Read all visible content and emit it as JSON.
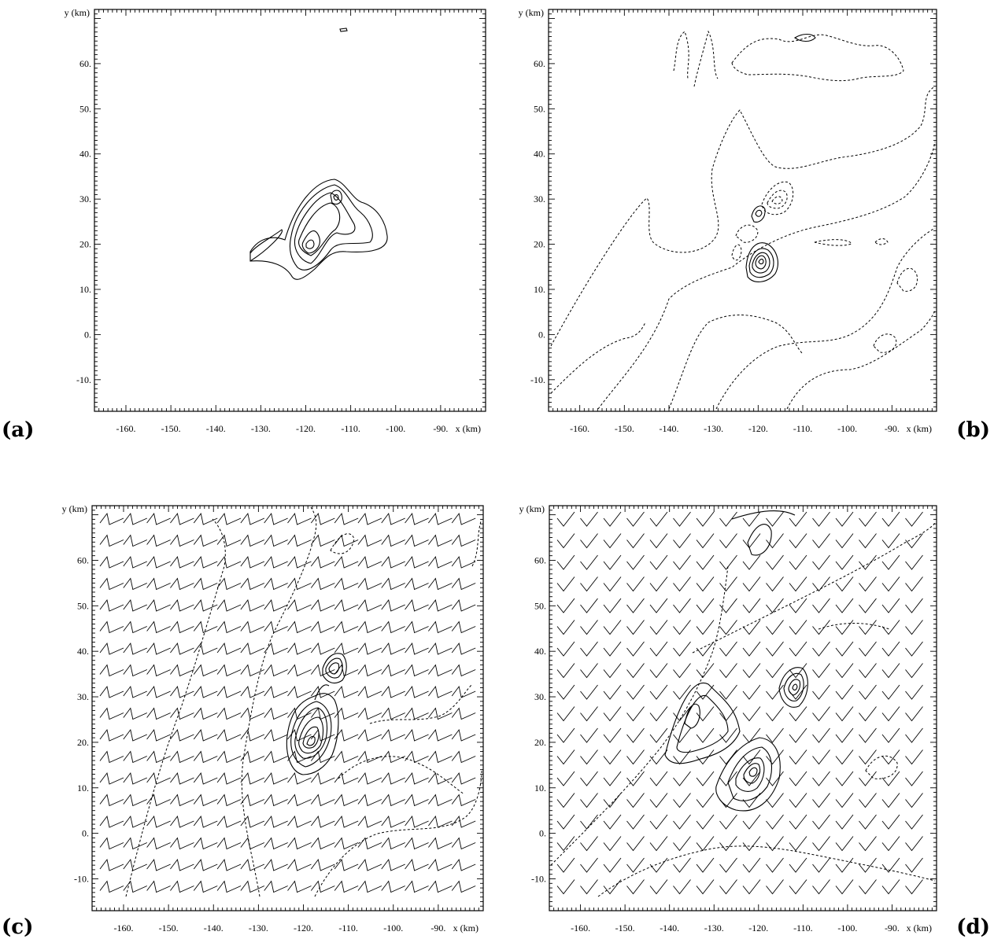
{
  "figure": {
    "panels": [
      {
        "id": "a",
        "label": "(a)",
        "xlabel": "x (km)",
        "ylabel": "y (km)",
        "xticks": [
          "-160.",
          "-150.",
          "-140.",
          "-130.",
          "-120.",
          "-110.",
          "-100.",
          "-90."
        ],
        "yticks": [
          "60.",
          "50.",
          "40.",
          "30.",
          "20.",
          "10.",
          "0.",
          "-10."
        ],
        "xlim": [
          -167,
          -80
        ],
        "ylim": [
          -17,
          72
        ],
        "wind_barbs": false
      },
      {
        "id": "b",
        "label": "(b)",
        "xlabel": "x (km)",
        "ylabel": "y (km)",
        "xticks": [
          "-160.",
          "-150.",
          "-140.",
          "-130.",
          "-120.",
          "-110.",
          "-100.",
          "-90."
        ],
        "yticks": [
          "60.",
          "50.",
          "40.",
          "30.",
          "20.",
          "10.",
          "0.",
          "-10."
        ],
        "xlim": [
          -167,
          -80
        ],
        "ylim": [
          -17,
          72
        ],
        "wind_barbs": false
      },
      {
        "id": "c",
        "label": "(c)",
        "xlabel": "x (km)",
        "ylabel": "y (km)",
        "xticks": [
          "-160.",
          "-150.",
          "-140.",
          "-130.",
          "-120.",
          "-110.",
          "-100.",
          "-90."
        ],
        "yticks": [
          "60.",
          "50.",
          "40.",
          "30.",
          "20.",
          "10.",
          "0.",
          "-10."
        ],
        "xlim": [
          -167,
          -80
        ],
        "ylim": [
          -17,
          72
        ],
        "wind_barbs": true,
        "barb_style": "zigzag"
      },
      {
        "id": "d",
        "label": "(d)",
        "xlabel": "x (km)",
        "ylabel": "y (km)",
        "xticks": [
          "-160.",
          "-150.",
          "-140.",
          "-130.",
          "-120.",
          "-110.",
          "-100.",
          "-90."
        ],
        "yticks": [
          "60.",
          "50.",
          "40.",
          "30.",
          "20.",
          "10.",
          "0.",
          "-10."
        ],
        "xlim": [
          -167,
          -80
        ],
        "ylim": [
          -17,
          72
        ],
        "wind_barbs": true,
        "barb_style": "check"
      }
    ]
  }
}
